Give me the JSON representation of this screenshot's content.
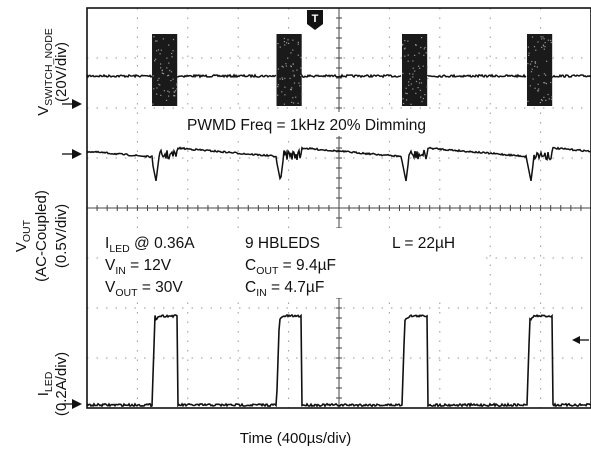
{
  "chart_data": {
    "type": "line",
    "xlabel": "Time (400µs/div)",
    "trigger_marker": "T",
    "pwm_annotation": "PWMD Freq = 1kHz  20% Dimming",
    "channels": [
      {
        "name": "VSWITCH_NODE",
        "label_main": "V",
        "label_sub": "SWITCH_NODE",
        "label_scale": "(20V/div)",
        "scale": "20V/div",
        "segments": []
      },
      {
        "name": "VOUT",
        "label_main": "V",
        "label_sub": "OUT",
        "label_scale": "(AC-Coupled)",
        "label_scale2": "(0.5V/div)",
        "scale": "0.5V/div",
        "segments": []
      },
      {
        "name": "ILED",
        "label_main": "I",
        "label_sub": "LED",
        "label_scale": "(0.2A/div)",
        "scale": "0.2A/div",
        "segments": []
      }
    ],
    "conditions": [
      {
        "main": "I",
        "sub": "LED",
        "rest": " @ 0.36A"
      },
      {
        "main": "V",
        "sub": "IN",
        "rest": " = 12V"
      },
      {
        "main": "V",
        "sub": "OUT",
        "rest": " = 30V"
      },
      {
        "main": "9 HBLEDS",
        "sub": "",
        "rest": ""
      },
      {
        "main": "C",
        "sub": "OUT",
        "rest": " = 9.4µF"
      },
      {
        "main": "C",
        "sub": "IN",
        "rest": " = 4.7µF"
      },
      {
        "main": "L = 22µH",
        "sub": "",
        "rest": ""
      }
    ],
    "pwm_frequency": "1kHz",
    "dimming": "20%",
    "pulse_starts_div": [
      1.29,
      3.76,
      6.25,
      8.73
    ],
    "pulse_width_div": 0.5,
    "grid": true
  },
  "colors": {
    "trace": "#111111",
    "grid": "#9a9a9a",
    "frame": "#111111"
  }
}
